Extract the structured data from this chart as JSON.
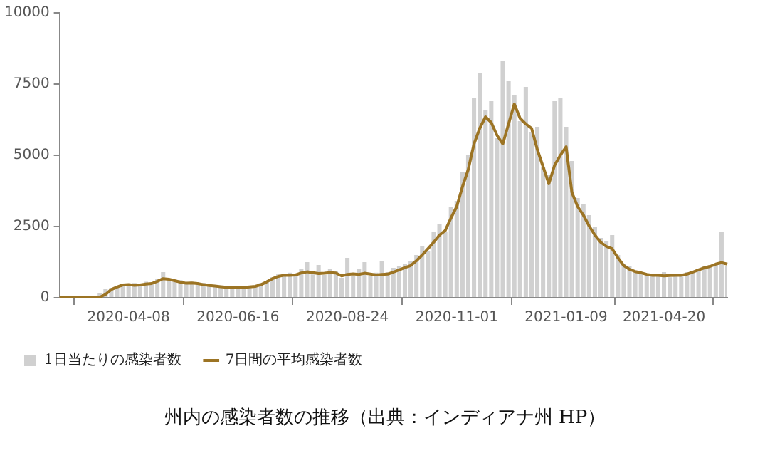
{
  "chart_data": {
    "type": "bar",
    "categories": [
      null,
      null,
      null,
      null,
      null,
      null,
      null,
      null,
      null,
      null,
      null,
      null,
      "2020-04-08",
      null,
      null,
      null,
      null,
      null,
      null,
      null,
      null,
      null,
      null,
      null,
      null,
      null,
      null,
      null,
      null,
      null,
      null,
      "2020-06-16",
      null,
      null,
      null,
      null,
      null,
      null,
      null,
      null,
      null,
      null,
      null,
      null,
      null,
      null,
      null,
      null,
      null,
      null,
      "2020-08-24",
      null,
      null,
      null,
      null,
      null,
      null,
      null,
      null,
      null,
      null,
      null,
      null,
      null,
      null,
      null,
      null,
      null,
      null,
      "2020-11-01",
      null,
      null,
      null,
      null,
      null,
      null,
      null,
      null,
      null,
      null,
      null,
      null,
      null,
      null,
      null,
      null,
      null,
      null,
      "2021-01-09",
      null,
      null,
      null,
      null,
      null,
      null,
      null,
      null,
      null,
      null,
      null,
      null,
      null,
      null,
      null,
      null,
      "2021-04-20",
      null,
      null,
      null,
      null,
      null,
      null,
      null,
      null,
      null,
      null,
      null
    ],
    "series": [
      {
        "name": "1日当たりの感染者数",
        "color": "#d0d0d0",
        "values": [
          0,
          0,
          0,
          0,
          0,
          0,
          0,
          150,
          320,
          350,
          420,
          500,
          430,
          520,
          410,
          560,
          480,
          650,
          900,
          640,
          560,
          620,
          480,
          560,
          470,
          520,
          400,
          450,
          370,
          420,
          340,
          400,
          350,
          420,
          380,
          520,
          600,
          720,
          820,
          760,
          880,
          760,
          1000,
          1250,
          820,
          1150,
          800,
          1000,
          950,
          700,
          1400,
          780,
          1000,
          1250,
          760,
          880,
          1300,
          900,
          1050,
          1100,
          1200,
          1300,
          1500,
          1800,
          1650,
          2300,
          2600,
          2300,
          3200,
          3400,
          4400,
          5000,
          7000,
          7900,
          6600,
          6900,
          5600,
          8300,
          7600,
          7100,
          6200,
          7400,
          5800,
          6000,
          4600,
          4300,
          6900,
          7000,
          6000,
          4800,
          3500,
          3300,
          2900,
          2500,
          2100,
          2000,
          2200,
          1500,
          1200,
          1100,
          950,
          900,
          850,
          820,
          760,
          900,
          720,
          850,
          800,
          900,
          950,
          1000,
          1100,
          1150,
          1200,
          2300,
          1100
        ]
      },
      {
        "name": "7日間の平均感染者数",
        "type": "line",
        "color": "#9c7424",
        "values": [
          0,
          0,
          0,
          0,
          0,
          0,
          0,
          20,
          120,
          290,
          380,
          450,
          460,
          440,
          450,
          480,
          500,
          580,
          670,
          650,
          600,
          550,
          510,
          520,
          500,
          460,
          430,
          410,
          390,
          370,
          360,
          360,
          360,
          380,
          400,
          460,
          560,
          670,
          750,
          790,
          790,
          800,
          870,
          910,
          880,
          850,
          860,
          880,
          870,
          770,
          820,
          840,
          820,
          860,
          830,
          800,
          820,
          830,
          900,
          980,
          1060,
          1130,
          1300,
          1500,
          1720,
          1950,
          2200,
          2360,
          2800,
          3200,
          3900,
          4500,
          5400,
          5950,
          6350,
          6150,
          5700,
          5400,
          6100,
          6800,
          6300,
          6100,
          5950,
          5200,
          4600,
          4000,
          4650,
          5000,
          5300,
          3700,
          3200,
          2900,
          2520,
          2200,
          1950,
          1800,
          1720,
          1400,
          1130,
          1000,
          920,
          880,
          820,
          790,
          790,
          770,
          780,
          790,
          790,
          830,
          900,
          980,
          1050,
          1100,
          1180,
          1230,
          1180
        ]
      }
    ],
    "ylim": [
      0,
      10000
    ],
    "yticks": [
      0,
      2500,
      5000,
      7500,
      10000
    ],
    "grid": false,
    "legend": "bottom left",
    "annotations": [
      "州内の感染者数の推移（出典：インディアナ州 HP）"
    ]
  }
}
